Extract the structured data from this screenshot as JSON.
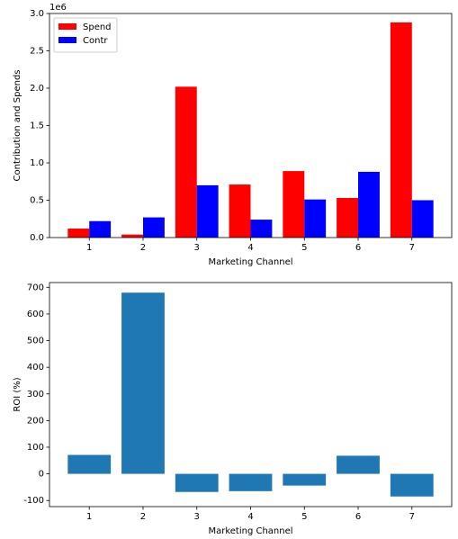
{
  "chart_data": [
    {
      "type": "bar",
      "x": [
        1,
        2,
        3,
        4,
        5,
        6,
        7
      ],
      "series": [
        {
          "name": "Spend",
          "color": "#ff0000",
          "values": [
            0.12,
            0.04,
            2.02,
            0.71,
            0.89,
            0.53,
            2.88
          ]
        },
        {
          "name": "Contr",
          "color": "#0000ff",
          "values": [
            0.22,
            0.27,
            0.7,
            0.24,
            0.51,
            0.88,
            0.5
          ]
        }
      ],
      "xlabel": "Marketing Channel",
      "ylabel": "Contribution and Spends",
      "y_offset_label": "1e6",
      "xlim": [
        0.26,
        7.74
      ],
      "xticks": [
        1,
        2,
        3,
        4,
        5,
        6,
        7
      ],
      "ylim": [
        0,
        3.0
      ],
      "yticks": [
        {
          "value": 0,
          "label": "0.0"
        },
        0.5,
        {
          "value": 1,
          "label": "1.0"
        },
        1.5,
        {
          "value": 2,
          "label": "2.0"
        },
        2.5,
        {
          "value": 3,
          "label": "3.0"
        }
      ],
      "legend": "upper left"
    },
    {
      "type": "bar",
      "x": [
        1,
        2,
        3,
        4,
        5,
        6,
        7
      ],
      "values": [
        71,
        680,
        -68,
        -65,
        -44,
        68,
        -85
      ],
      "color": "#1f77b4",
      "xlabel": "Marketing Channel",
      "ylabel": "ROI (%)",
      "xlim": [
        0.26,
        7.74
      ],
      "xticks": [
        1,
        2,
        3,
        4,
        5,
        6,
        7
      ],
      "ylim": [
        -123,
        718
      ],
      "yticks": [
        -100,
        0,
        100,
        200,
        300,
        400,
        500,
        600,
        700
      ]
    }
  ]
}
